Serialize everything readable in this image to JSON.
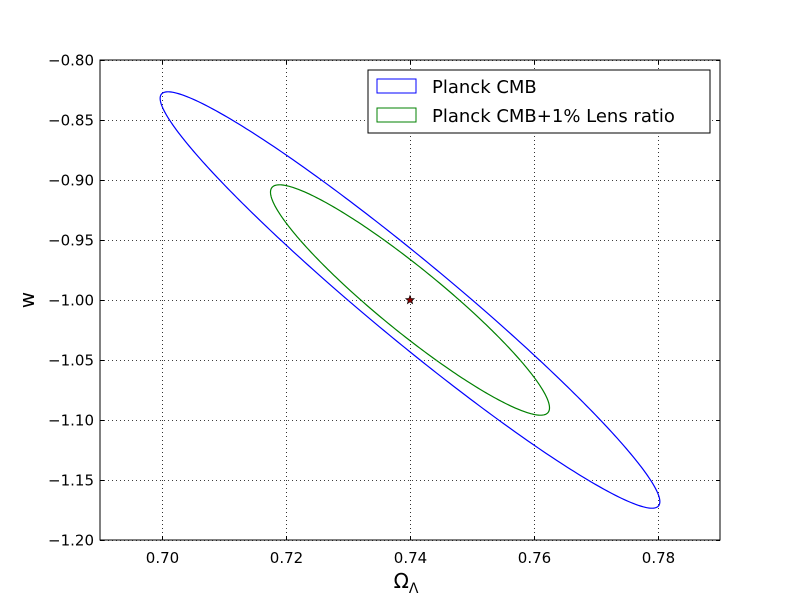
{
  "chart_data": {
    "type": "line",
    "title": "",
    "xlabel": "Ω",
    "xlabel_subscript": "Λ",
    "ylabel": "w",
    "xlim": [
      0.69,
      0.79
    ],
    "ylim": [
      -1.2,
      -0.8
    ],
    "xticks": [
      0.7,
      0.72,
      0.74,
      0.76,
      0.78
    ],
    "xtick_labels": [
      "0.70",
      "0.72",
      "0.74",
      "0.76",
      "0.78"
    ],
    "yticks": [
      -0.8,
      -0.85,
      -0.9,
      -0.95,
      -1.0,
      -1.05,
      -1.1,
      -1.15,
      -1.2
    ],
    "ytick_labels": [
      "−0.80",
      "−0.85",
      "−0.90",
      "−0.95",
      "−1.00",
      "−1.05",
      "−1.10",
      "−1.15",
      "−1.20"
    ],
    "grid": true,
    "grid_style": "dotted",
    "legend_position": "top-right",
    "series": [
      {
        "name": "Planck CMB",
        "color": "#0000ff",
        "shape": "ellipse",
        "extremes": {
          "left": [
            0.6997,
            -0.829
          ],
          "right": [
            0.7803,
            -1.171
          ],
          "top": [
            0.7004,
            -0.8265
          ],
          "bottom": [
            0.7796,
            -1.1735
          ]
        }
      },
      {
        "name": "Planck CMB+1% Lens ratio",
        "color": "#008000",
        "shape": "ellipse",
        "extremes": {
          "left": [
            0.7175,
            -0.906
          ],
          "right": [
            0.7625,
            -1.094
          ],
          "top": [
            0.7185,
            -0.904
          ],
          "bottom": [
            0.7615,
            -1.096
          ]
        }
      }
    ],
    "markers": [
      {
        "x": 0.74,
        "y": -1.0,
        "symbol": "star",
        "color": "#8b0000"
      }
    ]
  }
}
